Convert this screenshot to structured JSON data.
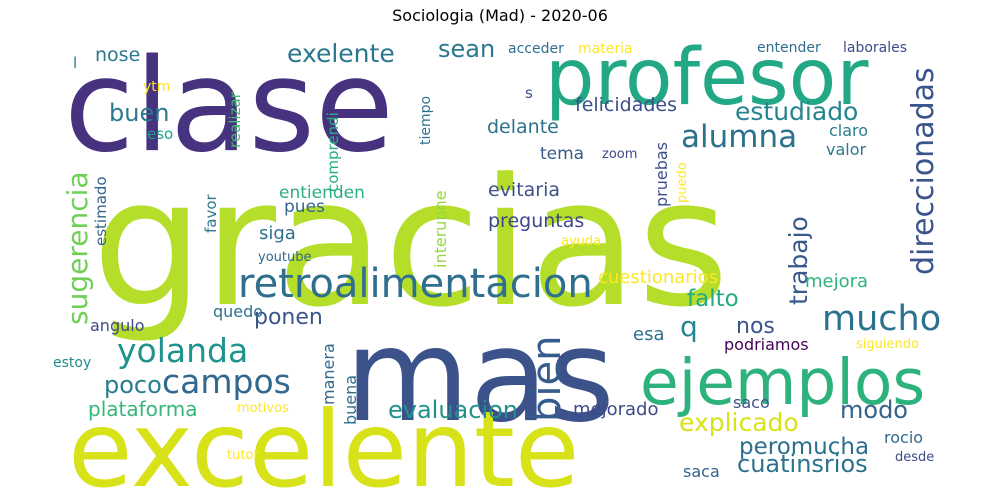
{
  "chart_data": {
    "type": "wordcloud",
    "title": "Sociologia (Mad) - 2020-06",
    "words": [
      {
        "text": "gracias",
        "weight": 100,
        "color": "#b5de2b"
      },
      {
        "text": "clase",
        "weight": 78,
        "color": "#46327e"
      },
      {
        "text": "mas",
        "weight": 78,
        "color": "#3b528b"
      },
      {
        "text": "excelente",
        "weight": 64,
        "color": "#d7e219"
      },
      {
        "text": "profesor",
        "weight": 48,
        "color": "#22a884"
      },
      {
        "text": "ejemplos",
        "weight": 38,
        "color": "#2db27d"
      },
      {
        "text": "retroalimentacion",
        "weight": 25,
        "color": "#2e6e8e"
      },
      {
        "text": "bien",
        "weight": 24,
        "color": "#365c8d"
      },
      {
        "text": "mucho",
        "weight": 21,
        "color": "#2c728e"
      },
      {
        "text": "yolanda",
        "weight": 20,
        "color": "#1f948c"
      },
      {
        "text": "campos",
        "weight": 20,
        "color": "#31688e"
      },
      {
        "text": "alumna",
        "weight": 19,
        "color": "#2c718e"
      },
      {
        "text": "direccionadas",
        "weight": 18,
        "color": "#39558c"
      },
      {
        "text": "sugerencia",
        "weight": 17,
        "color": "#70cf57"
      },
      {
        "text": "q",
        "weight": 17,
        "color": "#24868e"
      },
      {
        "text": "trabajo",
        "weight": 15,
        "color": "#38598c"
      },
      {
        "text": "exelente",
        "weight": 15,
        "color": "#2a768e"
      },
      {
        "text": "estudiado",
        "weight": 15,
        "color": "#25858e"
      },
      {
        "text": "explicado",
        "weight": 15,
        "color": "#d8e219"
      },
      {
        "text": "evaluacion",
        "weight": 14,
        "color": "#21918c"
      },
      {
        "text": "buen",
        "weight": 14,
        "color": "#2a788e"
      },
      {
        "text": "sean",
        "weight": 14,
        "color": "#2a788e"
      },
      {
        "text": "poco",
        "weight": 14,
        "color": "#287d8e"
      },
      {
        "text": "modo",
        "weight": 14,
        "color": "#33638d"
      },
      {
        "text": "cuatinsrios",
        "weight": 14,
        "color": "#2c728e"
      },
      {
        "text": "peromucha",
        "weight": 13,
        "color": "#2d708e"
      },
      {
        "text": "falto",
        "weight": 13,
        "color": "#23a983"
      },
      {
        "text": "nos",
        "weight": 13,
        "color": "#3a548c"
      },
      {
        "text": "ponen",
        "weight": 13,
        "color": "#39568c"
      },
      {
        "text": "plataforma",
        "weight": 12,
        "color": "#35b779"
      },
      {
        "text": "felicidades",
        "weight": 11,
        "color": "#3c4f8a"
      },
      {
        "text": "nose",
        "weight": 11,
        "color": "#2a788e"
      },
      {
        "text": "delante",
        "weight": 11,
        "color": "#2c728e"
      },
      {
        "text": "evitaria",
        "weight": 11,
        "color": "#3b528b"
      },
      {
        "text": "preguntas",
        "weight": 11,
        "color": "#3f4788"
      },
      {
        "text": "cuestionarios",
        "weight": 11,
        "color": "#fde725"
      },
      {
        "text": "mejora",
        "weight": 10,
        "color": "#2fb47c"
      },
      {
        "text": "esa",
        "weight": 10,
        "color": "#2c728e"
      },
      {
        "text": "mejorado",
        "weight": 10,
        "color": "#3e4989"
      },
      {
        "text": "siga",
        "weight": 10,
        "color": "#2d708e"
      },
      {
        "text": "entienden",
        "weight": 10,
        "color": "#29af7f"
      },
      {
        "text": "pues",
        "weight": 10,
        "color": "#31688e"
      },
      {
        "text": "tema",
        "weight": 9,
        "color": "#375a8c"
      },
      {
        "text": "claro",
        "weight": 9,
        "color": "#277f8e"
      },
      {
        "text": "valor",
        "weight": 9,
        "color": "#2a778e"
      },
      {
        "text": "rocio",
        "weight": 9,
        "color": "#2f6b8e"
      },
      {
        "text": "saca",
        "weight": 9,
        "color": "#33628d"
      },
      {
        "text": "saco",
        "weight": 9,
        "color": "#3b528b"
      },
      {
        "text": "podriamos",
        "weight": 9,
        "color": "#450457"
      },
      {
        "text": "angulo",
        "weight": 9,
        "color": "#3e4a89"
      },
      {
        "text": "quedo",
        "weight": 9,
        "color": "#2c728e"
      },
      {
        "text": "manera",
        "weight": 9,
        "color": "#31688e"
      },
      {
        "text": "buena",
        "weight": 9,
        "color": "#2e6f8e"
      },
      {
        "text": "pruebas",
        "weight": 9,
        "color": "#3d4e8a"
      },
      {
        "text": "interupne",
        "weight": 9,
        "color": "#95d840"
      },
      {
        "text": "comprendi",
        "weight": 8,
        "color": "#29af7f"
      },
      {
        "text": "realizar",
        "weight": 8,
        "color": "#42be71"
      },
      {
        "text": "favor",
        "weight": 8,
        "color": "#2a778e"
      },
      {
        "text": "estimado",
        "weight": 8,
        "color": "#33638d"
      },
      {
        "text": "eso",
        "weight": 8,
        "color": "#1fa088"
      },
      {
        "text": "s",
        "weight": 8,
        "color": "#3d4e8a"
      },
      {
        "text": "l",
        "weight": 8,
        "color": "#2a788e"
      },
      {
        "text": "estoy",
        "weight": 7,
        "color": "#228d8d"
      },
      {
        "text": "laborales",
        "weight": 7,
        "color": "#3e4a89"
      },
      {
        "text": "entender",
        "weight": 7,
        "color": "#2e6e8e"
      },
      {
        "text": "acceder",
        "weight": 7,
        "color": "#2d708e"
      },
      {
        "text": "materia",
        "weight": 7,
        "color": "#fde725"
      },
      {
        "text": "ytm",
        "weight": 7,
        "color": "#fde725"
      },
      {
        "text": "tiempo",
        "weight": 6,
        "color": "#2c728e"
      },
      {
        "text": "zoom",
        "weight": 6,
        "color": "#3e4a89"
      },
      {
        "text": "puedo",
        "weight": 6,
        "color": "#fde725"
      },
      {
        "text": "ayuda",
        "weight": 6,
        "color": "#fde725"
      },
      {
        "text": "youtube",
        "weight": 6,
        "color": "#31688e"
      },
      {
        "text": "siguiendo",
        "weight": 6,
        "color": "#fde725"
      },
      {
        "text": "desde",
        "weight": 6,
        "color": "#3e4a89"
      },
      {
        "text": "motivos",
        "weight": 6,
        "color": "#fde725"
      },
      {
        "text": "tutor",
        "weight": 6,
        "color": "#fde725"
      }
    ]
  }
}
